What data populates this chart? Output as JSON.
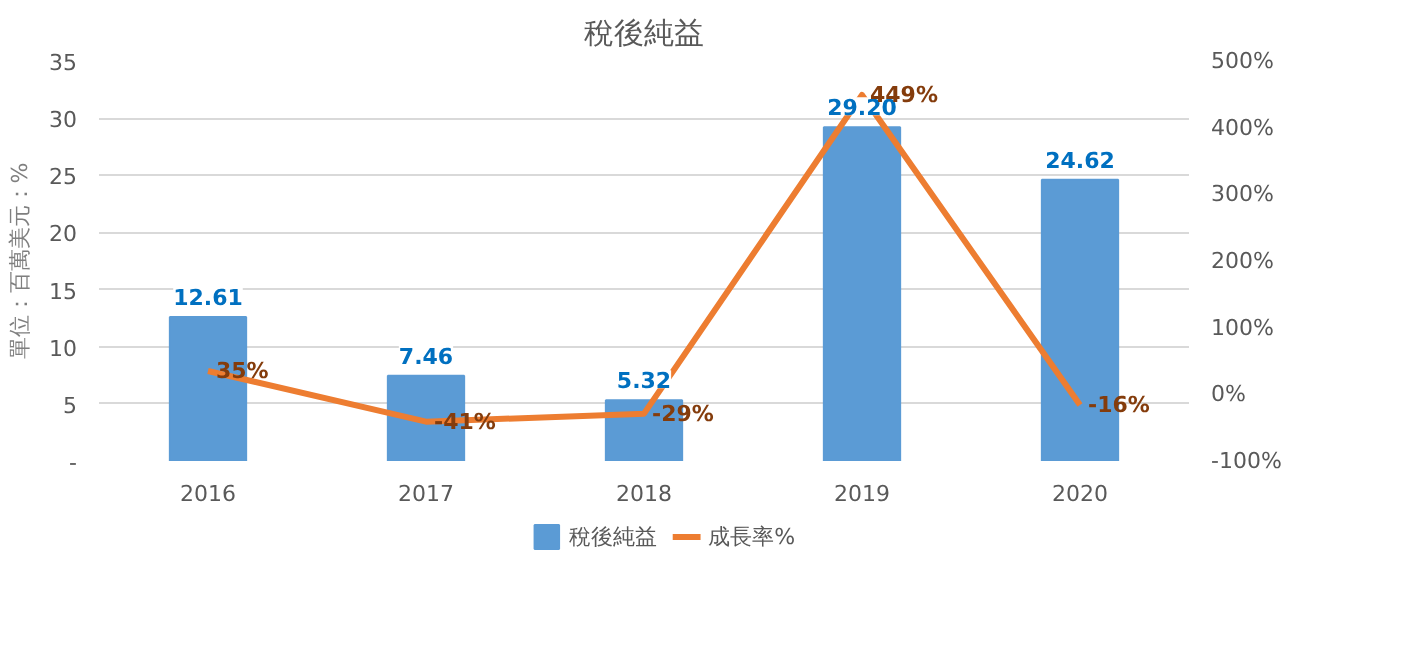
{
  "chart_data": {
    "type": "bar",
    "title": "稅後純益",
    "ylabel": "單位：百萬美元：%",
    "categories": [
      "2016",
      "2017",
      "2018",
      "2019",
      "2020"
    ],
    "series": [
      {
        "name": "稅後純益",
        "color": "#5b9bd5",
        "values": [
          12.61,
          7.46,
          5.32,
          29.2,
          24.62
        ],
        "value_labels": [
          "12.61",
          "7.46",
          "5.32",
          "29.20",
          "24.62"
        ]
      },
      {
        "name": "成長率%",
        "type": "line",
        "axis": "y2",
        "color": "#ed7d31",
        "values": [
          35,
          -41,
          -29,
          449,
          -16
        ],
        "value_labels": [
          "35%",
          "-41%",
          "-29%",
          "449%",
          "-16%"
        ]
      }
    ],
    "ylim": [
      0,
      35
    ],
    "yticks": [
      {
        "value": 0,
        "label": "-"
      },
      5,
      10,
      15,
      20,
      25,
      30,
      35
    ],
    "y2lim": [
      -100,
      500
    ],
    "y2ticks": [
      {
        "value": -100,
        "label": "-100%"
      },
      {
        "value": 0,
        "label": "0%"
      },
      {
        "value": 100,
        "label": "100%"
      },
      {
        "value": 200,
        "label": "200%"
      },
      {
        "value": 300,
        "label": "300%"
      },
      {
        "value": 400,
        "label": "400%"
      },
      {
        "value": 500,
        "label": "500%"
      }
    ],
    "grid": "y",
    "legend": "bottom",
    "marker": "none",
    "line_style": "solid"
  }
}
